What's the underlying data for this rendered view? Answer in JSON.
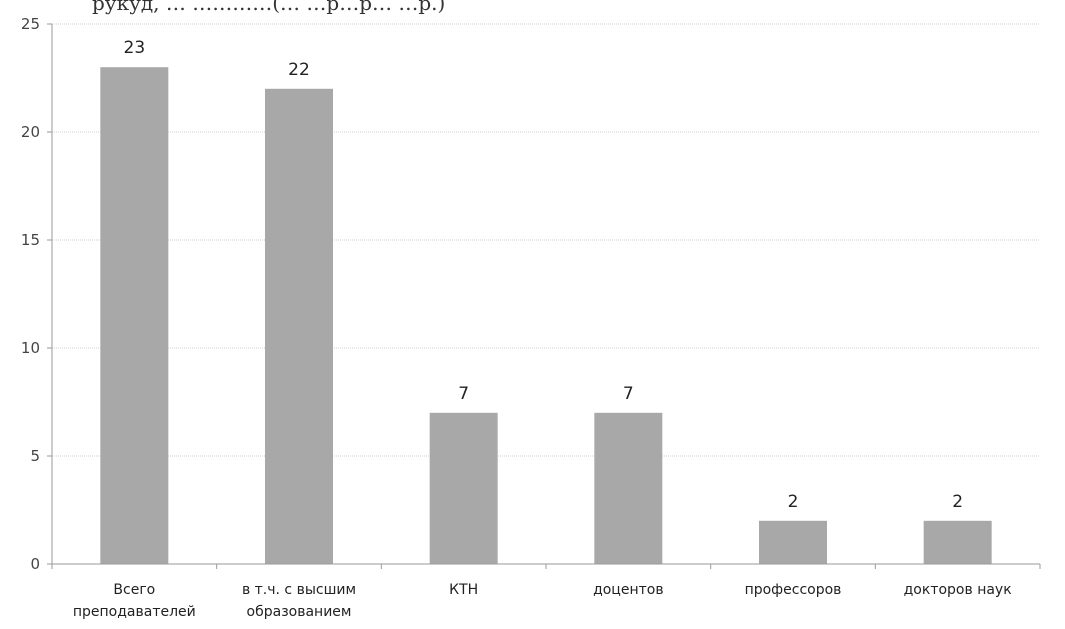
{
  "header_fragment": "рукуд, … …………(…  …р…р… …р.)",
  "chart_data": {
    "type": "bar",
    "categories": [
      [
        "Всего",
        "преподавателей"
      ],
      [
        "в т.ч. с высшим",
        "образованием"
      ],
      [
        "КТН"
      ],
      [
        "доцентов"
      ],
      [
        "профессоров"
      ],
      [
        "докторов наук"
      ]
    ],
    "values": [
      23,
      22,
      7,
      7,
      2,
      2
    ],
    "data_labels": [
      "23",
      "22",
      "7",
      "7",
      "2",
      "2"
    ],
    "ylim": [
      0,
      25
    ],
    "yticks": [
      0,
      5,
      10,
      15,
      20,
      25
    ],
    "grid": true,
    "bar_color": "#a8a8a8",
    "title": "",
    "xlabel": "",
    "ylabel": ""
  }
}
